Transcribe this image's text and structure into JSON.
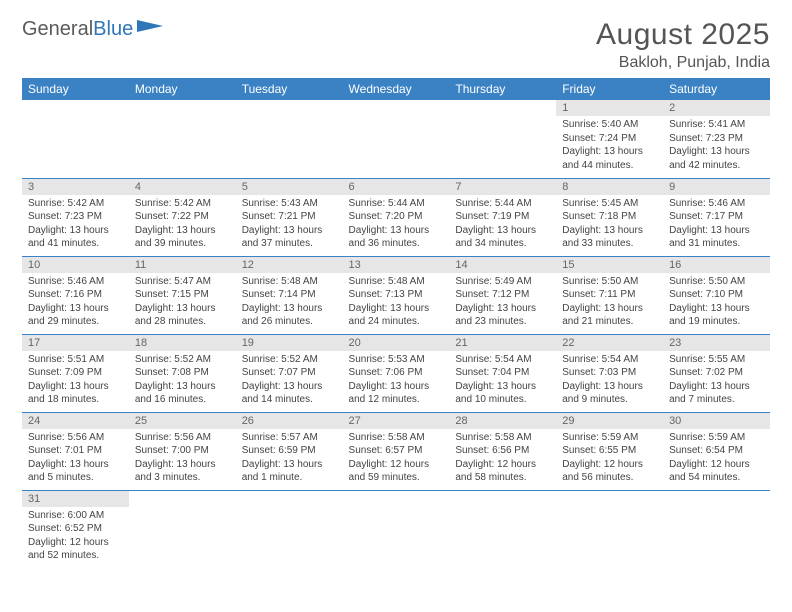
{
  "brand": {
    "text1": "General",
    "text2": "Blue"
  },
  "title": "August 2025",
  "location": "Bakloh, Punjab, India",
  "colors": {
    "header_bg": "#3b82c4",
    "header_fg": "#ffffff",
    "daynum_bg": "#e6e6e6",
    "daynum_fg": "#666666",
    "rule": "#3b82c4",
    "text": "#444444",
    "title": "#555555"
  },
  "typography": {
    "title_fontsize": 30,
    "location_fontsize": 16,
    "header_fontsize": 12,
    "daynum_fontsize": 11,
    "body_fontsize": 10
  },
  "day_header": [
    "Sunday",
    "Monday",
    "Tuesday",
    "Wednesday",
    "Thursday",
    "Friday",
    "Saturday"
  ],
  "weeks": [
    [
      null,
      null,
      null,
      null,
      null,
      {
        "n": "1",
        "sr": "Sunrise: 5:40 AM",
        "ss": "Sunset: 7:24 PM",
        "dl1": "Daylight: 13 hours",
        "dl2": "and 44 minutes."
      },
      {
        "n": "2",
        "sr": "Sunrise: 5:41 AM",
        "ss": "Sunset: 7:23 PM",
        "dl1": "Daylight: 13 hours",
        "dl2": "and 42 minutes."
      }
    ],
    [
      {
        "n": "3",
        "sr": "Sunrise: 5:42 AM",
        "ss": "Sunset: 7:23 PM",
        "dl1": "Daylight: 13 hours",
        "dl2": "and 41 minutes."
      },
      {
        "n": "4",
        "sr": "Sunrise: 5:42 AM",
        "ss": "Sunset: 7:22 PM",
        "dl1": "Daylight: 13 hours",
        "dl2": "and 39 minutes."
      },
      {
        "n": "5",
        "sr": "Sunrise: 5:43 AM",
        "ss": "Sunset: 7:21 PM",
        "dl1": "Daylight: 13 hours",
        "dl2": "and 37 minutes."
      },
      {
        "n": "6",
        "sr": "Sunrise: 5:44 AM",
        "ss": "Sunset: 7:20 PM",
        "dl1": "Daylight: 13 hours",
        "dl2": "and 36 minutes."
      },
      {
        "n": "7",
        "sr": "Sunrise: 5:44 AM",
        "ss": "Sunset: 7:19 PM",
        "dl1": "Daylight: 13 hours",
        "dl2": "and 34 minutes."
      },
      {
        "n": "8",
        "sr": "Sunrise: 5:45 AM",
        "ss": "Sunset: 7:18 PM",
        "dl1": "Daylight: 13 hours",
        "dl2": "and 33 minutes."
      },
      {
        "n": "9",
        "sr": "Sunrise: 5:46 AM",
        "ss": "Sunset: 7:17 PM",
        "dl1": "Daylight: 13 hours",
        "dl2": "and 31 minutes."
      }
    ],
    [
      {
        "n": "10",
        "sr": "Sunrise: 5:46 AM",
        "ss": "Sunset: 7:16 PM",
        "dl1": "Daylight: 13 hours",
        "dl2": "and 29 minutes."
      },
      {
        "n": "11",
        "sr": "Sunrise: 5:47 AM",
        "ss": "Sunset: 7:15 PM",
        "dl1": "Daylight: 13 hours",
        "dl2": "and 28 minutes."
      },
      {
        "n": "12",
        "sr": "Sunrise: 5:48 AM",
        "ss": "Sunset: 7:14 PM",
        "dl1": "Daylight: 13 hours",
        "dl2": "and 26 minutes."
      },
      {
        "n": "13",
        "sr": "Sunrise: 5:48 AM",
        "ss": "Sunset: 7:13 PM",
        "dl1": "Daylight: 13 hours",
        "dl2": "and 24 minutes."
      },
      {
        "n": "14",
        "sr": "Sunrise: 5:49 AM",
        "ss": "Sunset: 7:12 PM",
        "dl1": "Daylight: 13 hours",
        "dl2": "and 23 minutes."
      },
      {
        "n": "15",
        "sr": "Sunrise: 5:50 AM",
        "ss": "Sunset: 7:11 PM",
        "dl1": "Daylight: 13 hours",
        "dl2": "and 21 minutes."
      },
      {
        "n": "16",
        "sr": "Sunrise: 5:50 AM",
        "ss": "Sunset: 7:10 PM",
        "dl1": "Daylight: 13 hours",
        "dl2": "and 19 minutes."
      }
    ],
    [
      {
        "n": "17",
        "sr": "Sunrise: 5:51 AM",
        "ss": "Sunset: 7:09 PM",
        "dl1": "Daylight: 13 hours",
        "dl2": "and 18 minutes."
      },
      {
        "n": "18",
        "sr": "Sunrise: 5:52 AM",
        "ss": "Sunset: 7:08 PM",
        "dl1": "Daylight: 13 hours",
        "dl2": "and 16 minutes."
      },
      {
        "n": "19",
        "sr": "Sunrise: 5:52 AM",
        "ss": "Sunset: 7:07 PM",
        "dl1": "Daylight: 13 hours",
        "dl2": "and 14 minutes."
      },
      {
        "n": "20",
        "sr": "Sunrise: 5:53 AM",
        "ss": "Sunset: 7:06 PM",
        "dl1": "Daylight: 13 hours",
        "dl2": "and 12 minutes."
      },
      {
        "n": "21",
        "sr": "Sunrise: 5:54 AM",
        "ss": "Sunset: 7:04 PM",
        "dl1": "Daylight: 13 hours",
        "dl2": "and 10 minutes."
      },
      {
        "n": "22",
        "sr": "Sunrise: 5:54 AM",
        "ss": "Sunset: 7:03 PM",
        "dl1": "Daylight: 13 hours",
        "dl2": "and 9 minutes."
      },
      {
        "n": "23",
        "sr": "Sunrise: 5:55 AM",
        "ss": "Sunset: 7:02 PM",
        "dl1": "Daylight: 13 hours",
        "dl2": "and 7 minutes."
      }
    ],
    [
      {
        "n": "24",
        "sr": "Sunrise: 5:56 AM",
        "ss": "Sunset: 7:01 PM",
        "dl1": "Daylight: 13 hours",
        "dl2": "and 5 minutes."
      },
      {
        "n": "25",
        "sr": "Sunrise: 5:56 AM",
        "ss": "Sunset: 7:00 PM",
        "dl1": "Daylight: 13 hours",
        "dl2": "and 3 minutes."
      },
      {
        "n": "26",
        "sr": "Sunrise: 5:57 AM",
        "ss": "Sunset: 6:59 PM",
        "dl1": "Daylight: 13 hours",
        "dl2": "and 1 minute."
      },
      {
        "n": "27",
        "sr": "Sunrise: 5:58 AM",
        "ss": "Sunset: 6:57 PM",
        "dl1": "Daylight: 12 hours",
        "dl2": "and 59 minutes."
      },
      {
        "n": "28",
        "sr": "Sunrise: 5:58 AM",
        "ss": "Sunset: 6:56 PM",
        "dl1": "Daylight: 12 hours",
        "dl2": "and 58 minutes."
      },
      {
        "n": "29",
        "sr": "Sunrise: 5:59 AM",
        "ss": "Sunset: 6:55 PM",
        "dl1": "Daylight: 12 hours",
        "dl2": "and 56 minutes."
      },
      {
        "n": "30",
        "sr": "Sunrise: 5:59 AM",
        "ss": "Sunset: 6:54 PM",
        "dl1": "Daylight: 12 hours",
        "dl2": "and 54 minutes."
      }
    ],
    [
      {
        "n": "31",
        "sr": "Sunrise: 6:00 AM",
        "ss": "Sunset: 6:52 PM",
        "dl1": "Daylight: 12 hours",
        "dl2": "and 52 minutes."
      },
      null,
      null,
      null,
      null,
      null,
      null
    ]
  ]
}
